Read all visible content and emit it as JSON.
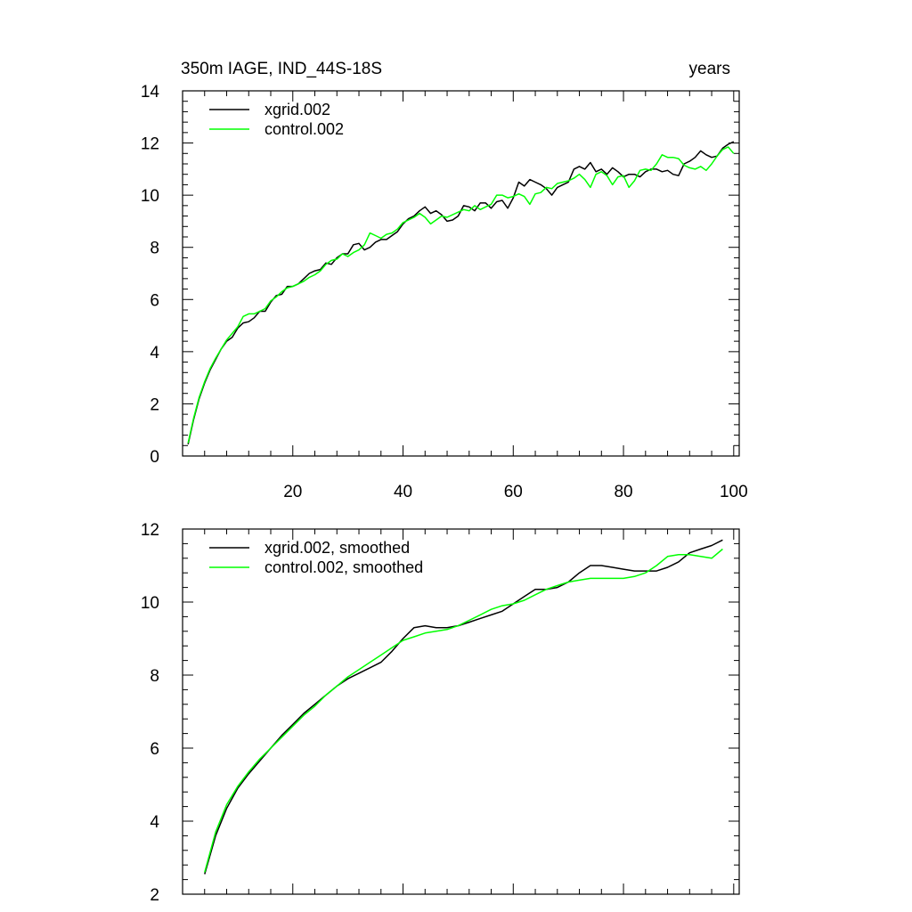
{
  "chart_data": [
    {
      "type": "line",
      "title": "350m IAGE, IND_44S-18S",
      "units": "years",
      "xlabel": "",
      "ylabel": "",
      "xlim": [
        0,
        101
      ],
      "ylim": [
        0,
        14
      ],
      "x_ticks": [
        20,
        40,
        60,
        80,
        100
      ],
      "y_ticks": [
        0,
        2,
        4,
        6,
        8,
        10,
        12,
        14
      ],
      "x_tick_labels": [
        "20",
        "40",
        "60",
        "80",
        "100"
      ],
      "y_tick_labels": [
        "0",
        "2",
        "4",
        "6",
        "8",
        "10",
        "12",
        "14"
      ],
      "legend_position": "top-left",
      "series": [
        {
          "name": "xgrid.002",
          "color": "#000000",
          "x": [
            1,
            2,
            3,
            4,
            5,
            6,
            7,
            8,
            9,
            10,
            11,
            12,
            13,
            14,
            15,
            16,
            17,
            18,
            19,
            20,
            21,
            22,
            23,
            24,
            25,
            26,
            27,
            28,
            29,
            30,
            31,
            32,
            33,
            34,
            35,
            36,
            37,
            38,
            39,
            40,
            41,
            42,
            43,
            44,
            45,
            46,
            47,
            48,
            49,
            50,
            51,
            52,
            53,
            54,
            55,
            56,
            57,
            58,
            59,
            60,
            61,
            62,
            63,
            64,
            65,
            66,
            67,
            68,
            69,
            70,
            71,
            72,
            73,
            74,
            75,
            76,
            77,
            78,
            79,
            80,
            81,
            82,
            83,
            84,
            85,
            86,
            87,
            88,
            89,
            90,
            91,
            92,
            93,
            94,
            95,
            96,
            97,
            98,
            99,
            100
          ],
          "values": [
            0.45,
            1.4,
            2.2,
            2.8,
            3.3,
            3.7,
            4.1,
            4.4,
            4.55,
            4.9,
            5.1,
            5.15,
            5.3,
            5.55,
            5.55,
            5.9,
            6.15,
            6.2,
            6.5,
            6.5,
            6.6,
            6.8,
            7.0,
            7.1,
            7.15,
            7.4,
            7.35,
            7.6,
            7.75,
            7.75,
            8.1,
            8.15,
            7.9,
            8.0,
            8.2,
            8.3,
            8.3,
            8.45,
            8.6,
            8.9,
            9.1,
            9.2,
            9.4,
            9.55,
            9.3,
            9.4,
            9.25,
            9.0,
            9.05,
            9.2,
            9.6,
            9.55,
            9.4,
            9.7,
            9.7,
            9.5,
            9.75,
            9.8,
            9.5,
            9.9,
            10.5,
            10.35,
            10.6,
            10.5,
            10.4,
            10.25,
            10.0,
            10.3,
            10.4,
            10.5,
            11.0,
            11.1,
            11.0,
            11.25,
            10.9,
            11.0,
            10.8,
            11.05,
            10.9,
            10.7,
            10.8,
            10.8,
            10.7,
            10.9,
            11.0,
            11.0,
            10.9,
            10.95,
            10.8,
            10.75,
            11.2,
            11.3,
            11.45,
            11.7,
            11.55,
            11.45,
            11.5,
            11.8,
            11.95,
            12.05
          ]
        },
        {
          "name": "control.002",
          "color": "#00ff00",
          "x": [
            1,
            2,
            3,
            4,
            5,
            6,
            7,
            8,
            9,
            10,
            11,
            12,
            13,
            14,
            15,
            16,
            17,
            18,
            19,
            20,
            21,
            22,
            23,
            24,
            25,
            26,
            27,
            28,
            29,
            30,
            31,
            32,
            33,
            34,
            35,
            36,
            37,
            38,
            39,
            40,
            41,
            42,
            43,
            44,
            45,
            46,
            47,
            48,
            49,
            50,
            51,
            52,
            53,
            54,
            55,
            56,
            57,
            58,
            59,
            60,
            61,
            62,
            63,
            64,
            65,
            66,
            67,
            68,
            69,
            70,
            71,
            72,
            73,
            74,
            75,
            76,
            77,
            78,
            79,
            80,
            81,
            82,
            83,
            84,
            85,
            86,
            87,
            88,
            89,
            90,
            91,
            92,
            93,
            94,
            95,
            96,
            97,
            98,
            99,
            100
          ],
          "values": [
            0.5,
            1.45,
            2.25,
            2.85,
            3.35,
            3.75,
            4.1,
            4.45,
            4.7,
            4.95,
            5.35,
            5.45,
            5.45,
            5.55,
            5.65,
            5.95,
            6.1,
            6.3,
            6.45,
            6.5,
            6.6,
            6.7,
            6.85,
            6.95,
            7.1,
            7.35,
            7.5,
            7.55,
            7.75,
            7.65,
            7.8,
            7.9,
            8.1,
            8.55,
            8.45,
            8.35,
            8.5,
            8.55,
            8.7,
            8.95,
            9.05,
            9.15,
            9.3,
            9.15,
            8.9,
            9.05,
            9.2,
            9.15,
            9.25,
            9.35,
            9.45,
            9.4,
            9.6,
            9.45,
            9.55,
            9.65,
            10.0,
            10.0,
            9.9,
            9.95,
            10.05,
            9.95,
            9.65,
            10.05,
            10.1,
            10.3,
            10.25,
            10.45,
            10.5,
            10.55,
            10.65,
            10.8,
            10.6,
            10.3,
            10.8,
            10.9,
            10.75,
            10.4,
            10.7,
            10.75,
            10.3,
            10.55,
            10.95,
            11.0,
            10.95,
            11.2,
            11.55,
            11.45,
            11.45,
            11.4,
            11.15,
            11.05,
            11.0,
            11.1,
            10.95,
            11.2,
            11.5,
            11.75,
            11.85,
            11.6
          ]
        }
      ]
    },
    {
      "type": "line",
      "title": "",
      "xlabel": "",
      "ylabel": "",
      "xlim": [
        0,
        101
      ],
      "ylim": [
        2,
        12
      ],
      "x_ticks": [
        20,
        40,
        60,
        80,
        100
      ],
      "y_ticks": [
        2,
        4,
        6,
        8,
        10,
        12
      ],
      "x_tick_labels": [],
      "y_tick_labels": [
        "2",
        "4",
        "6",
        "8",
        "10",
        "12"
      ],
      "legend_position": "top-left",
      "series": [
        {
          "name": "xgrid.002, smoothed",
          "color": "#000000",
          "x": [
            4,
            6,
            8,
            10,
            12,
            14,
            16,
            18,
            20,
            22,
            24,
            26,
            28,
            30,
            32,
            34,
            36,
            38,
            40,
            42,
            44,
            46,
            48,
            50,
            52,
            54,
            56,
            58,
            60,
            62,
            64,
            66,
            68,
            70,
            72,
            74,
            76,
            78,
            80,
            82,
            84,
            86,
            88,
            90,
            92,
            94,
            96,
            98
          ],
          "values": [
            2.55,
            3.6,
            4.35,
            4.9,
            5.3,
            5.65,
            6.0,
            6.35,
            6.65,
            6.95,
            7.2,
            7.45,
            7.7,
            7.9,
            8.05,
            8.2,
            8.35,
            8.65,
            9.0,
            9.3,
            9.35,
            9.3,
            9.3,
            9.35,
            9.45,
            9.55,
            9.65,
            9.75,
            9.95,
            10.15,
            10.35,
            10.35,
            10.4,
            10.55,
            10.8,
            11.0,
            11.0,
            10.95,
            10.9,
            10.85,
            10.85,
            10.85,
            10.95,
            11.1,
            11.35,
            11.45,
            11.55,
            11.7
          ]
        },
        {
          "name": "control.002, smoothed",
          "color": "#00ff00",
          "x": [
            4,
            6,
            8,
            10,
            12,
            14,
            16,
            18,
            20,
            22,
            24,
            26,
            28,
            30,
            32,
            34,
            36,
            38,
            40,
            42,
            44,
            46,
            48,
            50,
            52,
            54,
            56,
            58,
            60,
            62,
            64,
            66,
            68,
            70,
            72,
            74,
            76,
            78,
            80,
            82,
            84,
            86,
            88,
            90,
            92,
            94,
            96,
            98
          ],
          "values": [
            2.6,
            3.7,
            4.45,
            4.95,
            5.35,
            5.7,
            6.0,
            6.3,
            6.6,
            6.9,
            7.15,
            7.45,
            7.7,
            7.95,
            8.15,
            8.35,
            8.55,
            8.75,
            8.95,
            9.05,
            9.15,
            9.2,
            9.25,
            9.35,
            9.5,
            9.65,
            9.8,
            9.9,
            9.95,
            10.05,
            10.2,
            10.35,
            10.45,
            10.55,
            10.6,
            10.65,
            10.65,
            10.65,
            10.65,
            10.7,
            10.8,
            11.0,
            11.25,
            11.3,
            11.3,
            11.25,
            11.2,
            11.45
          ]
        }
      ]
    }
  ]
}
